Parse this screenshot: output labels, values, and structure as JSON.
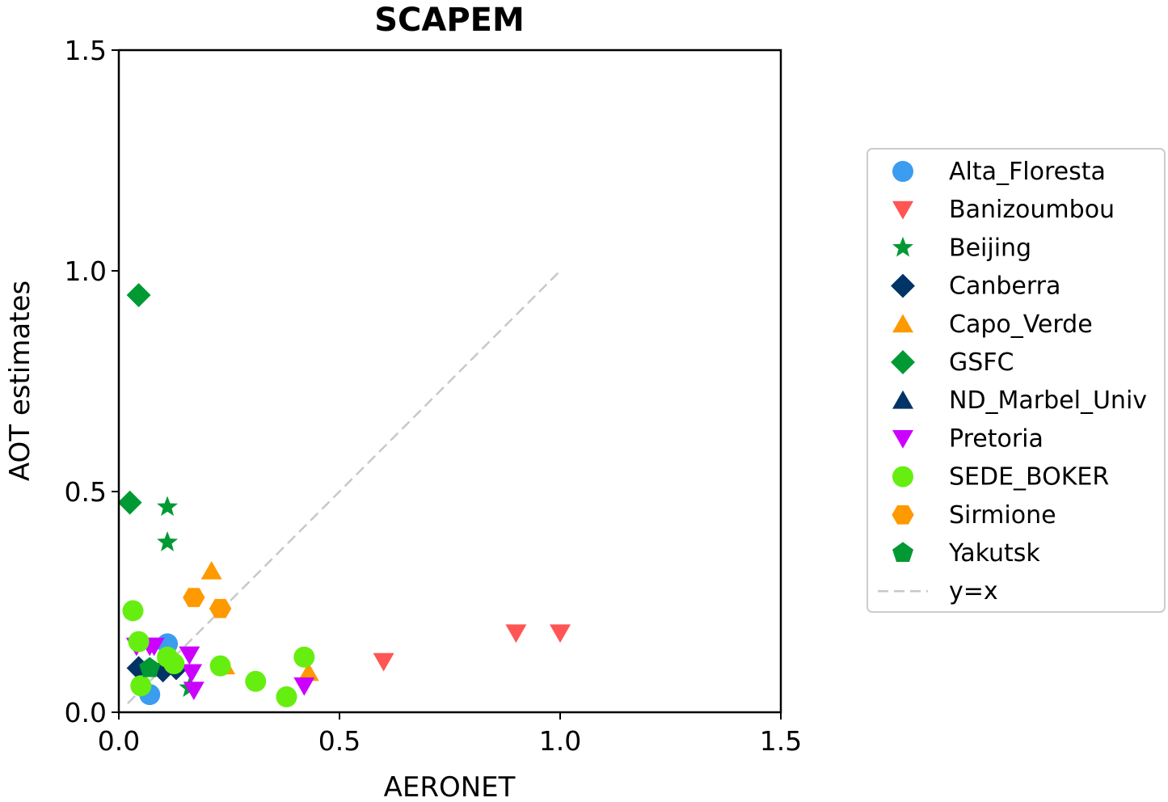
{
  "chart_data": {
    "type": "scatter",
    "title": "SCAPEM",
    "xlabel": "AERONET",
    "ylabel": "AOT estimates",
    "xlim": [
      0,
      1.5
    ],
    "ylim": [
      0,
      1.5
    ],
    "xticks": [
      "0.0",
      "0.5",
      "1.0",
      "1.5"
    ],
    "yticks": [
      "0.0",
      "0.5",
      "1.0",
      "1.5"
    ],
    "grid": false,
    "legend_position": "outside-right",
    "series": [
      {
        "name": "Alta_Floresta",
        "marker": "circle",
        "color": "#3b9cf0",
        "points": [
          [
            0.07,
            0.04
          ],
          [
            0.11,
            0.155
          ]
        ]
      },
      {
        "name": "Banizoumbou",
        "marker": "triangle-down",
        "color": "#ff5555",
        "points": [
          [
            0.9,
            0.18
          ],
          [
            1.0,
            0.18
          ],
          [
            0.6,
            0.115
          ]
        ]
      },
      {
        "name": "Beijing",
        "marker": "star",
        "color": "#009933",
        "points": [
          [
            0.11,
            0.465
          ],
          [
            0.11,
            0.385
          ],
          [
            0.16,
            0.055
          ]
        ]
      },
      {
        "name": "Canberra",
        "marker": "diamond",
        "color": "#003366",
        "points": [
          [
            0.045,
            0.1
          ],
          [
            0.1,
            0.095
          ],
          [
            0.13,
            0.1
          ]
        ]
      },
      {
        "name": "Capo_Verde",
        "marker": "triangle-up",
        "color": "#ff9900",
        "points": [
          [
            0.21,
            0.32
          ],
          [
            0.24,
            0.105
          ],
          [
            0.43,
            0.09
          ]
        ]
      },
      {
        "name": "GSFC",
        "marker": "diamond",
        "color": "#009933",
        "points": [
          [
            0.045,
            0.945
          ],
          [
            0.025,
            0.475
          ]
        ]
      },
      {
        "name": "ND_Marbel_Univ",
        "marker": "triangle-up",
        "color": "#003366",
        "points": [
          [
            0.11,
            0.105
          ]
        ]
      },
      {
        "name": "Pretoria",
        "marker": "triangle-down",
        "color": "#cc00ff",
        "points": [
          [
            0.04,
            0.15
          ],
          [
            0.07,
            0.15
          ],
          [
            0.08,
            0.15
          ],
          [
            0.16,
            0.13
          ],
          [
            0.165,
            0.09
          ],
          [
            0.17,
            0.05
          ],
          [
            0.42,
            0.06
          ]
        ]
      },
      {
        "name": "SEDE_BOKER",
        "marker": "circle",
        "color": "#66ee11",
        "points": [
          [
            0.032,
            0.23
          ],
          [
            0.045,
            0.16
          ],
          [
            0.05,
            0.06
          ],
          [
            0.11,
            0.125
          ],
          [
            0.125,
            0.11
          ],
          [
            0.23,
            0.105
          ],
          [
            0.31,
            0.07
          ],
          [
            0.38,
            0.035
          ],
          [
            0.42,
            0.125
          ]
        ]
      },
      {
        "name": "Sirmione",
        "marker": "hexagon",
        "color": "#ff9900",
        "points": [
          [
            0.17,
            0.26
          ],
          [
            0.23,
            0.235
          ]
        ]
      },
      {
        "name": "Yakutsk",
        "marker": "pentagon",
        "color": "#009933",
        "points": [
          [
            0.07,
            0.1
          ]
        ]
      },
      {
        "name": "y=x",
        "marker": "line-dashed",
        "color": "#c8c8c8",
        "points": [
          [
            0.02,
            0.02
          ],
          [
            1.0,
            1.0
          ]
        ]
      }
    ]
  }
}
